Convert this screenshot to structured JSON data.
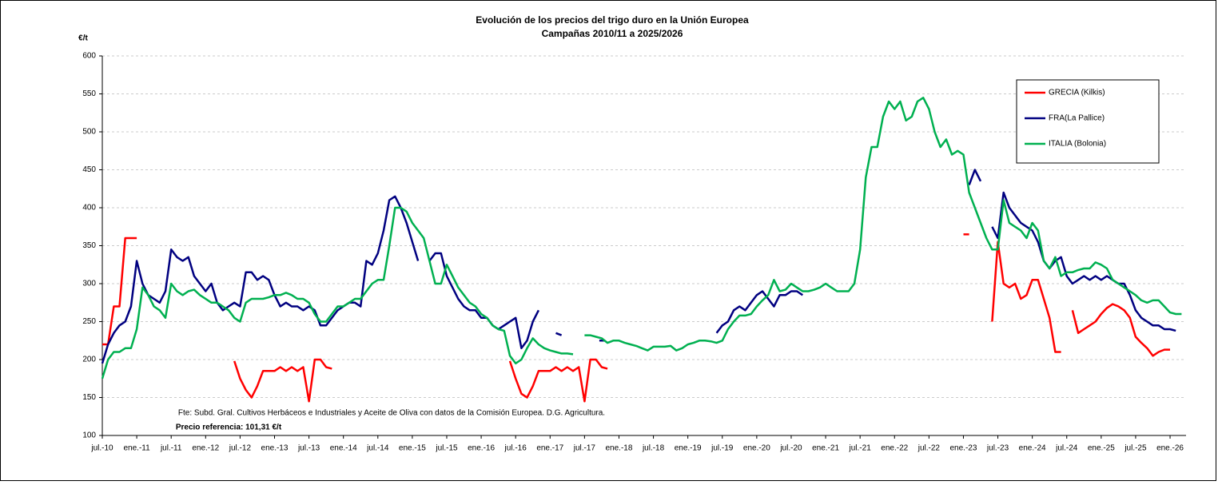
{
  "chart_data": {
    "type": "line",
    "title": "Evolución de los precios del trigo duro en la Unión Europea",
    "subtitle": "Campañas 2010/11 a 2025/2026",
    "y_label": "€/t",
    "annotations": [
      "Fte: Subd. Gral. Cultivos Herbáceos e Industriales y Aceite de Oliva con datos de la Comisión Europea. D.G. Agricultura.",
      "Precio referencia: 101,31 €/t"
    ],
    "ylim": [
      100,
      600
    ],
    "yticks": [
      100,
      150,
      200,
      250,
      300,
      350,
      400,
      450,
      500,
      550,
      600
    ],
    "grid": true,
    "legend": "upper right",
    "x": [
      "2010-07",
      "2010-08",
      "2010-09",
      "2010-10",
      "2010-11",
      "2010-12",
      "2011-01",
      "2011-02",
      "2011-03",
      "2011-04",
      "2011-05",
      "2011-06",
      "2011-07",
      "2011-08",
      "2011-09",
      "2011-10",
      "2011-11",
      "2011-12",
      "2012-01",
      "2012-02",
      "2012-03",
      "2012-04",
      "2012-05",
      "2012-06",
      "2012-07",
      "2012-08",
      "2012-09",
      "2012-10",
      "2012-11",
      "2012-12",
      "2013-01",
      "2013-02",
      "2013-03",
      "2013-04",
      "2013-05",
      "2013-06",
      "2013-07",
      "2013-08",
      "2013-09",
      "2013-10",
      "2013-11",
      "2013-12",
      "2014-01",
      "2014-02",
      "2014-03",
      "2014-04",
      "2014-05",
      "2014-06",
      "2014-07",
      "2014-08",
      "2014-09",
      "2014-10",
      "2014-11",
      "2014-12",
      "2015-01",
      "2015-02",
      "2015-03",
      "2015-04",
      "2015-05",
      "2015-06",
      "2015-07",
      "2015-08",
      "2015-09",
      "2015-10",
      "2015-11",
      "2015-12",
      "2016-01",
      "2016-02",
      "2016-03",
      "2016-04",
      "2016-05",
      "2016-06",
      "2016-07",
      "2016-08",
      "2016-09",
      "2016-10",
      "2016-11",
      "2016-12",
      "2017-01",
      "2017-02",
      "2017-03",
      "2017-04",
      "2017-05",
      "2017-06",
      "2017-07",
      "2017-08",
      "2017-09",
      "2017-10",
      "2017-11",
      "2017-12",
      "2018-01",
      "2018-02",
      "2018-03",
      "2018-04",
      "2018-05",
      "2018-06",
      "2018-07",
      "2018-08",
      "2018-09",
      "2018-10",
      "2018-11",
      "2018-12",
      "2019-01",
      "2019-02",
      "2019-03",
      "2019-04",
      "2019-05",
      "2019-06",
      "2019-07",
      "2019-08",
      "2019-09",
      "2019-10",
      "2019-11",
      "2019-12",
      "2020-01",
      "2020-02",
      "2020-03",
      "2020-04",
      "2020-05",
      "2020-06",
      "2020-07",
      "2020-08",
      "2020-09",
      "2020-10",
      "2020-11",
      "2020-12",
      "2021-01",
      "2021-02",
      "2021-03",
      "2021-04",
      "2021-05",
      "2021-06",
      "2021-07",
      "2021-08",
      "2021-09",
      "2021-10",
      "2021-11",
      "2021-12",
      "2022-01",
      "2022-02",
      "2022-03",
      "2022-04",
      "2022-05",
      "2022-06",
      "2022-07",
      "2022-08",
      "2022-09",
      "2022-10",
      "2022-11",
      "2022-12",
      "2023-01",
      "2023-02",
      "2023-03",
      "2023-04",
      "2023-05",
      "2023-06",
      "2023-07",
      "2023-08",
      "2023-09",
      "2023-10",
      "2023-11",
      "2023-12",
      "2024-01",
      "2024-02",
      "2024-03",
      "2024-04",
      "2024-05",
      "2024-06",
      "2024-07",
      "2024-08",
      "2024-09",
      "2024-10",
      "2024-11",
      "2024-12",
      "2025-01",
      "2025-02",
      "2025-03",
      "2025-04",
      "2025-05",
      "2025-06",
      "2025-07",
      "2025-08",
      "2025-09",
      "2025-10",
      "2025-11",
      "2025-12",
      "2026-01",
      "2026-02",
      "2026-03"
    ],
    "xticks": [
      {
        "value": "2010-07",
        "label": "jul.-10"
      },
      {
        "value": "2011-01",
        "label": "ene.-11"
      },
      {
        "value": "2011-07",
        "label": "jul.-11"
      },
      {
        "value": "2012-01",
        "label": "ene.-12"
      },
      {
        "value": "2012-07",
        "label": "jul.-12"
      },
      {
        "value": "2013-01",
        "label": "ene.-13"
      },
      {
        "value": "2013-07",
        "label": "jul.-13"
      },
      {
        "value": "2014-01",
        "label": "ene.-14"
      },
      {
        "value": "2014-07",
        "label": "jul.-14"
      },
      {
        "value": "2015-01",
        "label": "ene.-15"
      },
      {
        "value": "2015-07",
        "label": "jul.-15"
      },
      {
        "value": "2016-01",
        "label": "ene.-16"
      },
      {
        "value": "2016-07",
        "label": "jul.-16"
      },
      {
        "value": "2017-01",
        "label": "ene.-17"
      },
      {
        "value": "2017-07",
        "label": "jul.-17"
      },
      {
        "value": "2018-01",
        "label": "ene.-18"
      },
      {
        "value": "2018-07",
        "label": "jul.-18"
      },
      {
        "value": "2019-01",
        "label": "ene.-19"
      },
      {
        "value": "2019-07",
        "label": "jul.-19"
      },
      {
        "value": "2020-01",
        "label": "ene.-20"
      },
      {
        "value": "2020-07",
        "label": "jul.-20"
      },
      {
        "value": "2021-01",
        "label": "ene.-21"
      },
      {
        "value": "2021-07",
        "label": "jul.-21"
      },
      {
        "value": "2022-01",
        "label": "ene.-22"
      },
      {
        "value": "2022-07",
        "label": "jul.-22"
      },
      {
        "value": "2023-01",
        "label": "ene.-23"
      },
      {
        "value": "2023-07",
        "label": "jul.-23"
      },
      {
        "value": "2024-01",
        "label": "ene.-24"
      },
      {
        "value": "2024-07",
        "label": "jul.-24"
      },
      {
        "value": "2025-01",
        "label": "ene.-25"
      },
      {
        "value": "2025-07",
        "label": "jul.-25"
      },
      {
        "value": "2026-01",
        "label": "ene.-26"
      }
    ],
    "series": [
      {
        "name": "GRECIA (Kilkis)",
        "color": "#ff0000",
        "values": [
          220,
          220,
          270,
          270,
          360,
          360,
          360,
          null,
          null,
          null,
          null,
          null,
          null,
          null,
          null,
          null,
          null,
          null,
          null,
          null,
          null,
          null,
          null,
          198,
          175,
          160,
          150,
          165,
          185,
          185,
          185,
          190,
          185,
          190,
          185,
          190,
          145,
          200,
          200,
          190,
          188,
          null,
          null,
          null,
          null,
          null,
          null,
          null,
          null,
          null,
          null,
          null,
          null,
          null,
          null,
          null,
          null,
          null,
          null,
          null,
          null,
          null,
          null,
          null,
          null,
          null,
          null,
          null,
          null,
          null,
          null,
          198,
          175,
          155,
          150,
          165,
          185,
          185,
          185,
          190,
          185,
          190,
          185,
          190,
          145,
          200,
          200,
          190,
          188,
          null,
          null,
          null,
          null,
          null,
          null,
          null,
          null,
          null,
          null,
          null,
          null,
          null,
          null,
          null,
          null,
          null,
          null,
          null,
          null,
          null,
          null,
          null,
          null,
          null,
          null,
          null,
          null,
          null,
          null,
          null,
          null,
          null,
          null,
          null,
          null,
          null,
          null,
          null,
          null,
          null,
          null,
          null,
          null,
          null,
          null,
          null,
          null,
          null,
          null,
          null,
          null,
          null,
          null,
          null,
          null,
          null,
          null,
          null,
          null,
          null,
          365,
          365,
          null,
          null,
          null,
          250,
          355,
          300,
          295,
          300,
          280,
          285,
          305,
          305,
          280,
          255,
          210,
          210,
          null,
          265,
          235,
          240,
          245,
          250,
          260,
          268,
          273,
          270,
          265,
          255,
          230,
          222,
          215,
          205,
          210,
          213,
          213,
          null,
          null
        ]
      },
      {
        "name": "FRA(La Pallice)",
        "color": "#000080",
        "values": [
          195,
          220,
          235,
          245,
          250,
          270,
          330,
          300,
          285,
          280,
          275,
          290,
          345,
          335,
          330,
          335,
          310,
          300,
          290,
          300,
          275,
          265,
          270,
          275,
          270,
          315,
          315,
          305,
          310,
          305,
          285,
          270,
          275,
          270,
          270,
          265,
          270,
          265,
          245,
          245,
          255,
          265,
          270,
          275,
          275,
          270,
          330,
          325,
          340,
          370,
          410,
          415,
          400,
          380,
          355,
          330,
          null,
          330,
          340,
          340,
          310,
          295,
          280,
          270,
          265,
          265,
          255,
          255,
          245,
          240,
          245,
          250,
          255,
          215,
          225,
          250,
          265,
          null,
          null,
          235,
          232,
          null,
          null,
          null,
          null,
          null,
          null,
          225,
          null,
          null,
          null,
          null,
          null,
          null,
          null,
          null,
          null,
          null,
          null,
          null,
          null,
          null,
          null,
          null,
          null,
          null,
          null,
          235,
          245,
          250,
          265,
          270,
          265,
          275,
          285,
          290,
          280,
          270,
          285,
          285,
          290,
          290,
          285,
          null,
          null,
          null,
          null,
          null,
          null,
          null,
          null,
          null,
          null,
          null,
          null,
          null,
          null,
          null,
          null,
          null,
          null,
          null,
          null,
          null,
          null,
          null,
          null,
          null,
          null,
          null,
          null,
          430,
          450,
          435,
          null,
          375,
          360,
          420,
          400,
          390,
          380,
          375,
          370,
          355,
          330,
          320,
          330,
          335,
          310,
          300,
          305,
          310,
          305,
          310,
          305,
          310,
          305,
          300,
          300,
          285,
          265,
          255,
          250,
          245,
          245,
          240,
          240,
          238,
          null
        ]
      },
      {
        "name": "ITALIA (Bolonia)",
        "color": "#00b050",
        "values": [
          175,
          200,
          210,
          210,
          215,
          215,
          240,
          295,
          285,
          270,
          265,
          255,
          300,
          290,
          285,
          290,
          292,
          285,
          280,
          275,
          275,
          270,
          265,
          255,
          250,
          275,
          280,
          280,
          280,
          282,
          285,
          285,
          288,
          285,
          280,
          280,
          275,
          260,
          250,
          250,
          260,
          270,
          270,
          275,
          280,
          280,
          290,
          300,
          305,
          305,
          350,
          400,
          400,
          395,
          380,
          370,
          360,
          330,
          300,
          300,
          325,
          310,
          295,
          285,
          275,
          270,
          260,
          255,
          245,
          240,
          238,
          205,
          195,
          200,
          215,
          228,
          220,
          215,
          212,
          210,
          208,
          208,
          207,
          null,
          232,
          232,
          230,
          228,
          222,
          225,
          225,
          222,
          220,
          218,
          215,
          212,
          217,
          217,
          217,
          218,
          212,
          215,
          220,
          222,
          225,
          225,
          224,
          222,
          225,
          240,
          250,
          258,
          258,
          260,
          270,
          278,
          285,
          305,
          290,
          292,
          300,
          295,
          290,
          290,
          292,
          295,
          300,
          295,
          290,
          290,
          290,
          300,
          345,
          440,
          480,
          480,
          520,
          540,
          530,
          540,
          515,
          520,
          540,
          545,
          530,
          500,
          480,
          490,
          470,
          475,
          470,
          420,
          400,
          380,
          360,
          345,
          345,
          410,
          380,
          375,
          370,
          360,
          380,
          370,
          330,
          320,
          335,
          310,
          315,
          315,
          318,
          320,
          320,
          328,
          325,
          320,
          305,
          300,
          295,
          290,
          285,
          278,
          275,
          278,
          278,
          270,
          262,
          260,
          260
        ]
      }
    ]
  }
}
